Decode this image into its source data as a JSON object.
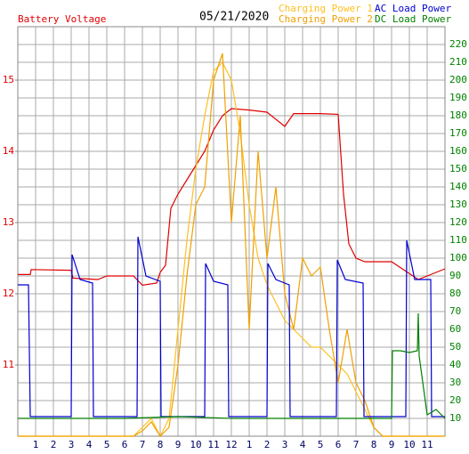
{
  "chart_data": {
    "type": "line",
    "title": "05/21/2020",
    "y_label": "Battery Voltage",
    "xlim": [
      0,
      24
    ],
    "xticks": [
      1,
      2,
      3,
      4,
      5,
      6,
      7,
      8,
      9,
      10,
      11,
      12,
      {
        "value": 13,
        "label": "1"
      },
      {
        "value": 14,
        "label": "2"
      },
      {
        "value": 15,
        "label": "3"
      },
      {
        "value": 16,
        "label": "4"
      },
      {
        "value": 17,
        "label": "5"
      },
      {
        "value": 18,
        "label": "6"
      },
      {
        "value": 19,
        "label": "7"
      },
      {
        "value": 20,
        "label": "8"
      },
      {
        "value": 21,
        "label": "9"
      },
      {
        "value": 22,
        "label": "10"
      },
      {
        "value": 23,
        "label": "11"
      }
    ],
    "ylim": [
      10,
      15.75
    ],
    "yticks": [
      11,
      12,
      13,
      14,
      15
    ],
    "y2lim": [
      0,
      230
    ],
    "y2ticks": [
      10,
      20,
      30,
      40,
      50,
      60,
      70,
      80,
      90,
      100,
      110,
      120,
      130,
      140,
      150,
      160,
      170,
      180,
      190,
      200,
      210,
      220
    ],
    "grid": true,
    "series": [
      {
        "name": "Battery Voltage",
        "color": "#e00000",
        "axis": "y",
        "x": [
          0,
          0.7,
          0.75,
          3,
          3.1,
          4.5,
          5,
          6.5,
          7,
          7.8,
          8,
          8.3,
          8.6,
          9,
          9.5,
          10,
          10.5,
          11,
          11.5,
          12,
          13,
          14,
          15,
          15.5,
          16,
          17,
          18,
          18.3,
          18.6,
          19,
          19.5,
          21,
          22.5,
          23.5,
          24
        ],
        "values": [
          12.27,
          12.27,
          12.34,
          12.33,
          12.22,
          12.2,
          12.25,
          12.25,
          12.12,
          12.15,
          12.3,
          12.4,
          13.2,
          13.4,
          13.6,
          13.8,
          14,
          14.3,
          14.5,
          14.6,
          14.58,
          14.55,
          14.35,
          14.53,
          14.53,
          14.53,
          14.52,
          13.4,
          12.7,
          12.5,
          12.45,
          12.45,
          12.2,
          12.3,
          12.35
        ]
      },
      {
        "name": "Charging Power 1",
        "color": "#ffc020",
        "axis": "y2",
        "x": [
          0,
          6.5,
          7,
          7.5,
          8,
          8.5,
          9,
          9.5,
          10,
          10.5,
          11,
          11.5,
          12,
          12.5,
          13,
          13.5,
          14,
          14.5,
          15,
          15.5,
          16,
          16.5,
          17,
          17.5,
          18,
          18.5,
          19,
          19.5,
          20,
          20.5,
          24
        ],
        "values": [
          0,
          0,
          5,
          10,
          0,
          10,
          60,
          110,
          150,
          180,
          205,
          210,
          200,
          170,
          130,
          100,
          85,
          75,
          65,
          60,
          55,
          50,
          50,
          45,
          40,
          35,
          25,
          15,
          5,
          0,
          0
        ]
      },
      {
        "name": "Charging Power 2",
        "color": "#f0a000",
        "axis": "y2",
        "x": [
          0,
          6.5,
          7,
          7.5,
          8,
          8.5,
          9,
          9.5,
          10,
          10.5,
          11,
          11.5,
          12,
          12.5,
          13,
          13.5,
          14,
          14.5,
          15,
          15.5,
          16,
          16.5,
          17,
          17.5,
          18,
          18.5,
          19,
          19.5,
          20,
          20.5,
          24
        ],
        "values": [
          0,
          0,
          3,
          8,
          0,
          5,
          40,
          90,
          130,
          140,
          200,
          215,
          120,
          180,
          60,
          160,
          100,
          140,
          80,
          60,
          100,
          90,
          95,
          60,
          30,
          60,
          30,
          20,
          5,
          0,
          0
        ]
      },
      {
        "name": "AC Load Power",
        "color": "#0000d0",
        "axis": "y2",
        "x": [
          0,
          0.6,
          0.7,
          3,
          3.05,
          3.5,
          4.2,
          4.25,
          6.7,
          6.75,
          7.2,
          8,
          8.05,
          10.5,
          10.55,
          11,
          11.8,
          11.85,
          14,
          14.05,
          14.5,
          15.25,
          15.3,
          17.9,
          17.95,
          18.4,
          19.4,
          19.45,
          21.8,
          21.85,
          22.3,
          23.2,
          23.25,
          24
        ],
        "values": [
          85,
          85,
          11,
          11,
          102,
          88,
          86,
          11,
          11,
          112,
          90,
          87,
          11,
          11,
          97,
          87,
          85,
          11,
          11,
          97,
          88,
          85,
          11,
          11,
          99,
          88,
          86,
          11,
          11,
          110,
          88,
          88,
          11,
          11
        ]
      },
      {
        "name": "DC Load Power",
        "color": "#008000",
        "axis": "y2",
        "x": [
          0,
          6,
          9,
          12,
          16,
          21,
          21.05,
          21.5,
          22,
          22.45,
          22.5,
          22.55,
          23,
          23.5,
          24
        ],
        "values": [
          10,
          10,
          11,
          10,
          10,
          10,
          48,
          48,
          47,
          48,
          69,
          45,
          12,
          15,
          10
        ]
      }
    ]
  }
}
